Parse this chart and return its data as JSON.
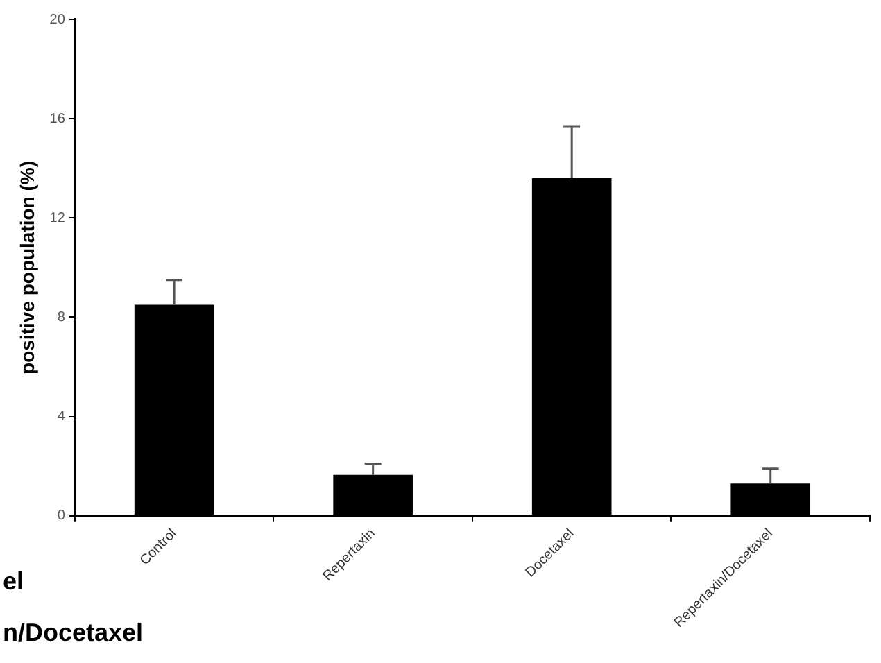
{
  "chart_data": {
    "type": "bar",
    "ylabel": "positive population (%)",
    "categories": [
      "Control",
      "Repertaxin",
      "Docetaxel",
      "Repertaxin/Docetaxel"
    ],
    "values": [
      8.5,
      1.65,
      13.6,
      1.3
    ],
    "color": "#000000",
    "errors": [
      [
        8.5,
        9.5
      ],
      [
        1.65,
        2.1
      ],
      [
        13.6,
        15.7
      ],
      [
        1.3,
        1.9
      ]
    ],
    "ylim": [
      0,
      20
    ],
    "yticks": [
      0,
      4,
      8,
      12,
      16,
      20
    ],
    "grid": false,
    "legend": false,
    "annotations": [
      "el",
      "n/Docetaxel"
    ]
  }
}
